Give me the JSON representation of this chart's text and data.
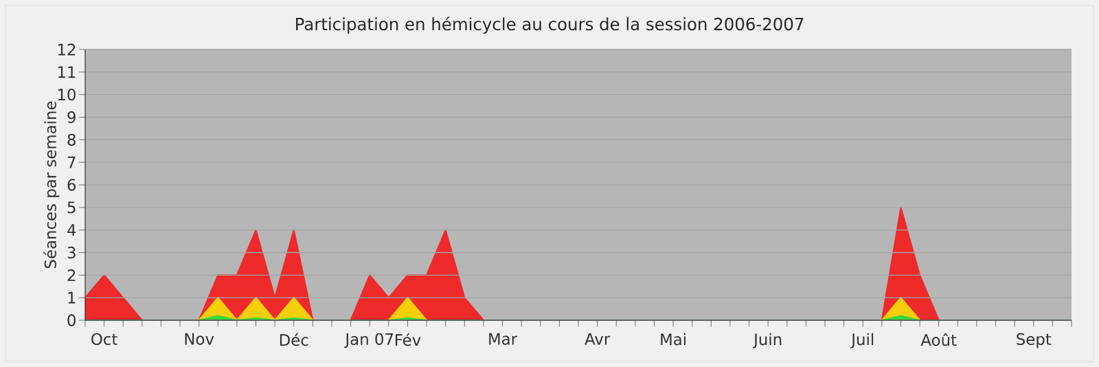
{
  "chart_data": {
    "type": "area",
    "title": "Participation en hémicycle au cours de la session 2006-2007",
    "ylabel": "Séances par semaine",
    "categories": [
      null,
      "Oct",
      null,
      null,
      null,
      null,
      "Nov",
      null,
      null,
      null,
      null,
      "Déc",
      null,
      null,
      null,
      "Jan 07",
      null,
      "Fév",
      null,
      null,
      null,
      null,
      "Mar",
      null,
      null,
      null,
      null,
      "Avr",
      null,
      null,
      null,
      "Mai",
      null,
      null,
      null,
      null,
      "Juin",
      null,
      null,
      null,
      null,
      "Juil",
      null,
      null,
      null,
      "Août",
      null,
      null,
      null,
      null,
      "Sept",
      null,
      null
    ],
    "series": [
      {
        "color": "#ee2a2a",
        "values": [
          1,
          2,
          1,
          0,
          0,
          0,
          0,
          2,
          2,
          4,
          1,
          4,
          0,
          0,
          0,
          2,
          1,
          2,
          2,
          4,
          1,
          0,
          0,
          0,
          0,
          0,
          0,
          0,
          0,
          0,
          0,
          0,
          0,
          0,
          0,
          0,
          0,
          0,
          0,
          0,
          0,
          0,
          0,
          5,
          2,
          0,
          0,
          0,
          0,
          0,
          0,
          0,
          0
        ]
      },
      {
        "color": "#f5cf0c",
        "values": [
          0,
          0,
          0,
          0,
          0,
          0,
          0,
          1,
          0,
          1,
          0,
          1,
          0,
          0,
          0,
          0,
          0,
          1,
          0,
          0,
          0,
          0,
          0,
          0,
          0,
          0,
          0,
          0,
          0,
          0,
          0,
          0,
          0,
          0,
          0,
          0,
          0,
          0,
          0,
          0,
          0,
          0,
          0,
          1,
          0,
          0,
          0,
          0,
          0,
          0,
          0,
          0,
          0
        ]
      },
      {
        "color": "#3ad63a",
        "values": [
          0,
          0,
          0,
          0,
          0,
          0,
          0,
          0.2,
          0,
          0.1,
          0,
          0.1,
          0,
          0,
          0,
          0,
          0,
          0.1,
          0,
          0,
          0,
          0,
          0,
          0,
          0,
          0,
          0,
          0,
          0,
          0,
          0,
          0,
          0,
          0,
          0,
          0,
          0,
          0,
          0,
          0,
          0,
          0,
          0,
          0.2,
          0,
          0,
          0,
          0,
          0,
          0,
          0,
          0,
          0
        ]
      }
    ],
    "ylim": [
      0,
      12
    ],
    "yticks": [
      0,
      1,
      2,
      3,
      4,
      5,
      6,
      7,
      8,
      9,
      10,
      11,
      12
    ],
    "grid": "y"
  }
}
